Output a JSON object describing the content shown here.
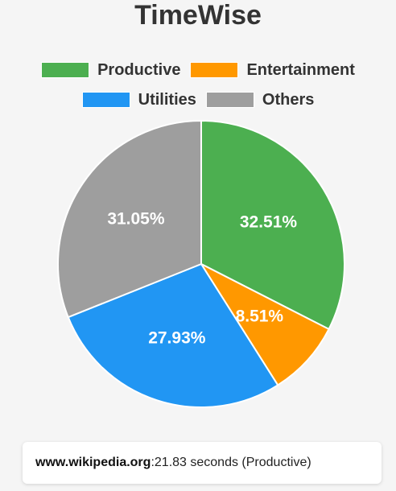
{
  "app": {
    "title": "TimeWise"
  },
  "chart_data": {
    "type": "pie",
    "categories": [
      "Productive",
      "Entertainment",
      "Utilities",
      "Others"
    ],
    "values": [
      32.51,
      8.51,
      27.93,
      31.05
    ],
    "value_labels": [
      "32.51%",
      "8.51%",
      "27.93%",
      "31.05%"
    ],
    "colors": [
      "#4caf50",
      "#ff9800",
      "#2196f3",
      "#9e9e9e"
    ],
    "legend_placement": "top",
    "start_angle": "top, clockwise"
  },
  "stats": [
    {
      "site": "www.wikipedia.org",
      "separator": ":",
      "detail": " 21.83 seconds (Productive)"
    }
  ]
}
